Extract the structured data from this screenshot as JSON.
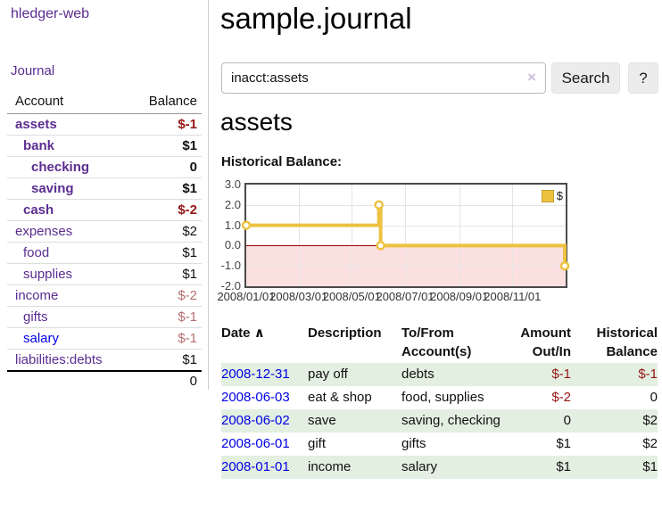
{
  "sidebar": {
    "brand": "hledger-web",
    "nav": {
      "journal": "Journal"
    },
    "accounts_table": {
      "headers": {
        "account": "Account",
        "balance": "Balance"
      },
      "rows": [
        {
          "name": "assets",
          "balance": "$-1",
          "level": 1,
          "bold": true,
          "neg": "strong"
        },
        {
          "name": "bank",
          "balance": "$1",
          "level": 2,
          "bold": true,
          "neg": "none"
        },
        {
          "name": "checking",
          "balance": "0",
          "level": 3,
          "bold": true,
          "neg": "none"
        },
        {
          "name": "saving",
          "balance": "$1",
          "level": 3,
          "bold": true,
          "neg": "none"
        },
        {
          "name": "cash",
          "balance": "$-2",
          "level": 2,
          "bold": true,
          "neg": "strong"
        },
        {
          "name": "expenses",
          "balance": "$2",
          "level": 1,
          "bold": false,
          "neg": "none"
        },
        {
          "name": "food",
          "balance": "$1",
          "level": 2,
          "bold": false,
          "neg": "none"
        },
        {
          "name": "supplies",
          "balance": "$1",
          "level": 2,
          "bold": false,
          "neg": "none"
        },
        {
          "name": "income",
          "balance": "$-2",
          "level": 1,
          "bold": false,
          "neg": "muted"
        },
        {
          "name": "gifts",
          "balance": "$-1",
          "level": 2,
          "bold": false,
          "neg": "muted"
        },
        {
          "name": "salary",
          "balance": "$-1",
          "level": 2,
          "bold": false,
          "neg": "muted",
          "link": "unvisited"
        },
        {
          "name": "liabilities:debts",
          "balance": "$1",
          "level": 1,
          "bold": false,
          "neg": "none"
        }
      ],
      "total": "0"
    }
  },
  "main": {
    "title": "sample.journal",
    "search": {
      "value": "inacct:assets",
      "clear": "×",
      "button": "Search",
      "help": "?"
    },
    "account_heading": "assets",
    "chart_label": "Historical Balance:",
    "register": {
      "headers": [
        "Date",
        "Description",
        "To/From Account(s)",
        "Amount Out/In",
        "Historical Balance"
      ],
      "sort_indicator": "∧",
      "rows": [
        {
          "date": "2008-12-31",
          "description": "pay off",
          "accounts": "debts",
          "amount": "$-1",
          "balance": "$-1",
          "amount_neg": true,
          "balance_neg": true
        },
        {
          "date": "2008-06-03",
          "description": "eat & shop",
          "accounts": "food, supplies",
          "amount": "$-2",
          "balance": "0",
          "amount_neg": true,
          "balance_neg": false
        },
        {
          "date": "2008-06-02",
          "description": "save",
          "accounts": "saving, checking",
          "amount": "0",
          "balance": "$2",
          "amount_neg": false,
          "balance_neg": false
        },
        {
          "date": "2008-06-01",
          "description": "gift",
          "accounts": "gifts",
          "amount": "$1",
          "balance": "$2",
          "amount_neg": false,
          "balance_neg": false
        },
        {
          "date": "2008-01-01",
          "description": "income",
          "accounts": "salary",
          "amount": "$1",
          "balance": "$1",
          "amount_neg": false,
          "balance_neg": false
        }
      ]
    }
  },
  "chart_data": {
    "type": "line",
    "title": "Historical Balance",
    "style": "step",
    "series": [
      {
        "name": "$",
        "color": "#edc240",
        "x": [
          "2008-01-01",
          "2008-06-01",
          "2008-06-03",
          "2008-12-31"
        ],
        "y": [
          1,
          2,
          0,
          -1
        ]
      }
    ],
    "xlim": [
      "2008-01-01",
      "2009-01-01"
    ],
    "ylim": [
      -2,
      3
    ],
    "xticks": [
      "2008/01/01",
      "2008/03/01",
      "2008/05/01",
      "2008/07/01",
      "2008/09/01",
      "2008/11/01"
    ],
    "yticks": [
      3.0,
      2.0,
      1.0,
      0.0,
      -1.0,
      -2.0
    ],
    "legend_position": "top-right",
    "grid": true,
    "negative_region_fill": "#fbe0e0",
    "zero_line_color": "#990000"
  },
  "colors": {
    "link_visited_purple": "#5b2d91",
    "link_blue": "#0000e6",
    "negative_strong": "#951616",
    "negative_muted": "#b66e6e",
    "row_green": "#e3efe1",
    "chart_line": "#edc240",
    "chart_negative_fill": "#fbe0e0",
    "chart_zero_line": "#990000",
    "button_bg": "#ececec"
  }
}
